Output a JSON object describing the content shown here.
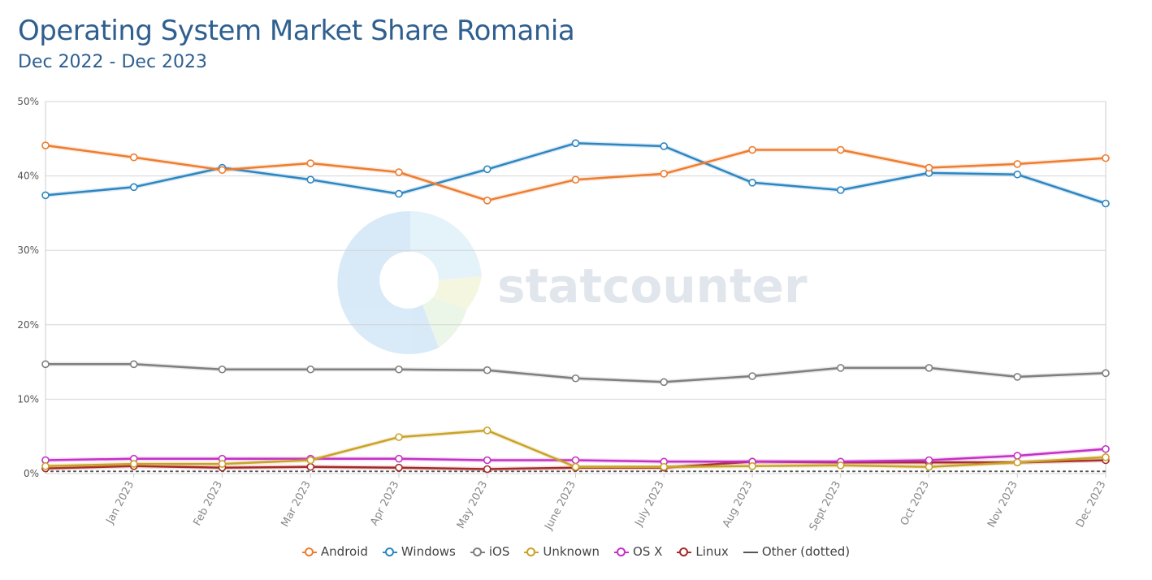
{
  "header": {
    "title": "Operating System Market Share Romania",
    "subtitle": "Dec 2022 - Dec 2023"
  },
  "watermark": {
    "text": "statcounter"
  },
  "chart_data": {
    "type": "line",
    "title": "Operating System Market Share Romania",
    "subtitle": "Dec 2022 - Dec 2023",
    "xlabel": "",
    "ylabel": "",
    "ylim": [
      0,
      50
    ],
    "y_ticks": [
      "0%",
      "10%",
      "20%",
      "30%",
      "40%",
      "50%"
    ],
    "grid": true,
    "legend_position": "bottom",
    "categories": [
      "Dec 2022",
      "Jan 2023",
      "Feb 2023",
      "Mar 2023",
      "Apr 2023",
      "May 2023",
      "June 2023",
      "July 2023",
      "Aug 2023",
      "Sept 2023",
      "Oct 2023",
      "Nov 2023",
      "Dec 2023"
    ],
    "x_tick_labels": [
      "Jan 2023",
      "Feb 2023",
      "Mar 2023",
      "Apr 2023",
      "May 2023",
      "June 2023",
      "July 2023",
      "Aug 2023",
      "Sept 2023",
      "Oct 2023",
      "Nov 2023",
      "Dec 2023"
    ],
    "series": [
      {
        "name": "Android",
        "color": "#ed7d31",
        "values": [
          44.1,
          42.5,
          40.8,
          41.7,
          40.5,
          36.7,
          39.5,
          40.3,
          43.5,
          43.5,
          41.1,
          41.6,
          42.4
        ]
      },
      {
        "name": "Windows",
        "color": "#2e86c1",
        "values": [
          37.4,
          38.5,
          41.1,
          39.5,
          37.6,
          40.9,
          44.4,
          44.0,
          39.1,
          38.1,
          40.4,
          40.2,
          36.3
        ]
      },
      {
        "name": "iOS",
        "color": "#7f7f7f",
        "values": [
          14.7,
          14.7,
          14.0,
          14.0,
          14.0,
          13.9,
          12.8,
          12.3,
          13.1,
          14.2,
          14.2,
          13.0,
          13.5
        ]
      },
      {
        "name": "Unknown",
        "color": "#c9a227",
        "values": [
          1.0,
          1.3,
          1.3,
          1.8,
          4.9,
          5.8,
          0.9,
          0.9,
          1.0,
          1.1,
          0.9,
          1.5,
          2.2
        ]
      },
      {
        "name": "OS X",
        "color": "#c531c5",
        "values": [
          1.8,
          2.0,
          2.0,
          2.0,
          2.0,
          1.8,
          1.8,
          1.6,
          1.6,
          1.6,
          1.8,
          2.4,
          3.3
        ]
      },
      {
        "name": "Linux",
        "color": "#a72a2a",
        "values": [
          0.7,
          1.0,
          0.8,
          0.9,
          0.8,
          0.6,
          0.8,
          0.8,
          1.6,
          1.5,
          1.5,
          1.5,
          1.8
        ]
      },
      {
        "name": "Other (dotted)",
        "color": "#555555",
        "dotted": true,
        "values": [
          0.3,
          0.3,
          0.3,
          0.3,
          0.3,
          0.3,
          0.3,
          0.3,
          0.3,
          0.3,
          0.3,
          0.3,
          0.3
        ]
      }
    ]
  }
}
